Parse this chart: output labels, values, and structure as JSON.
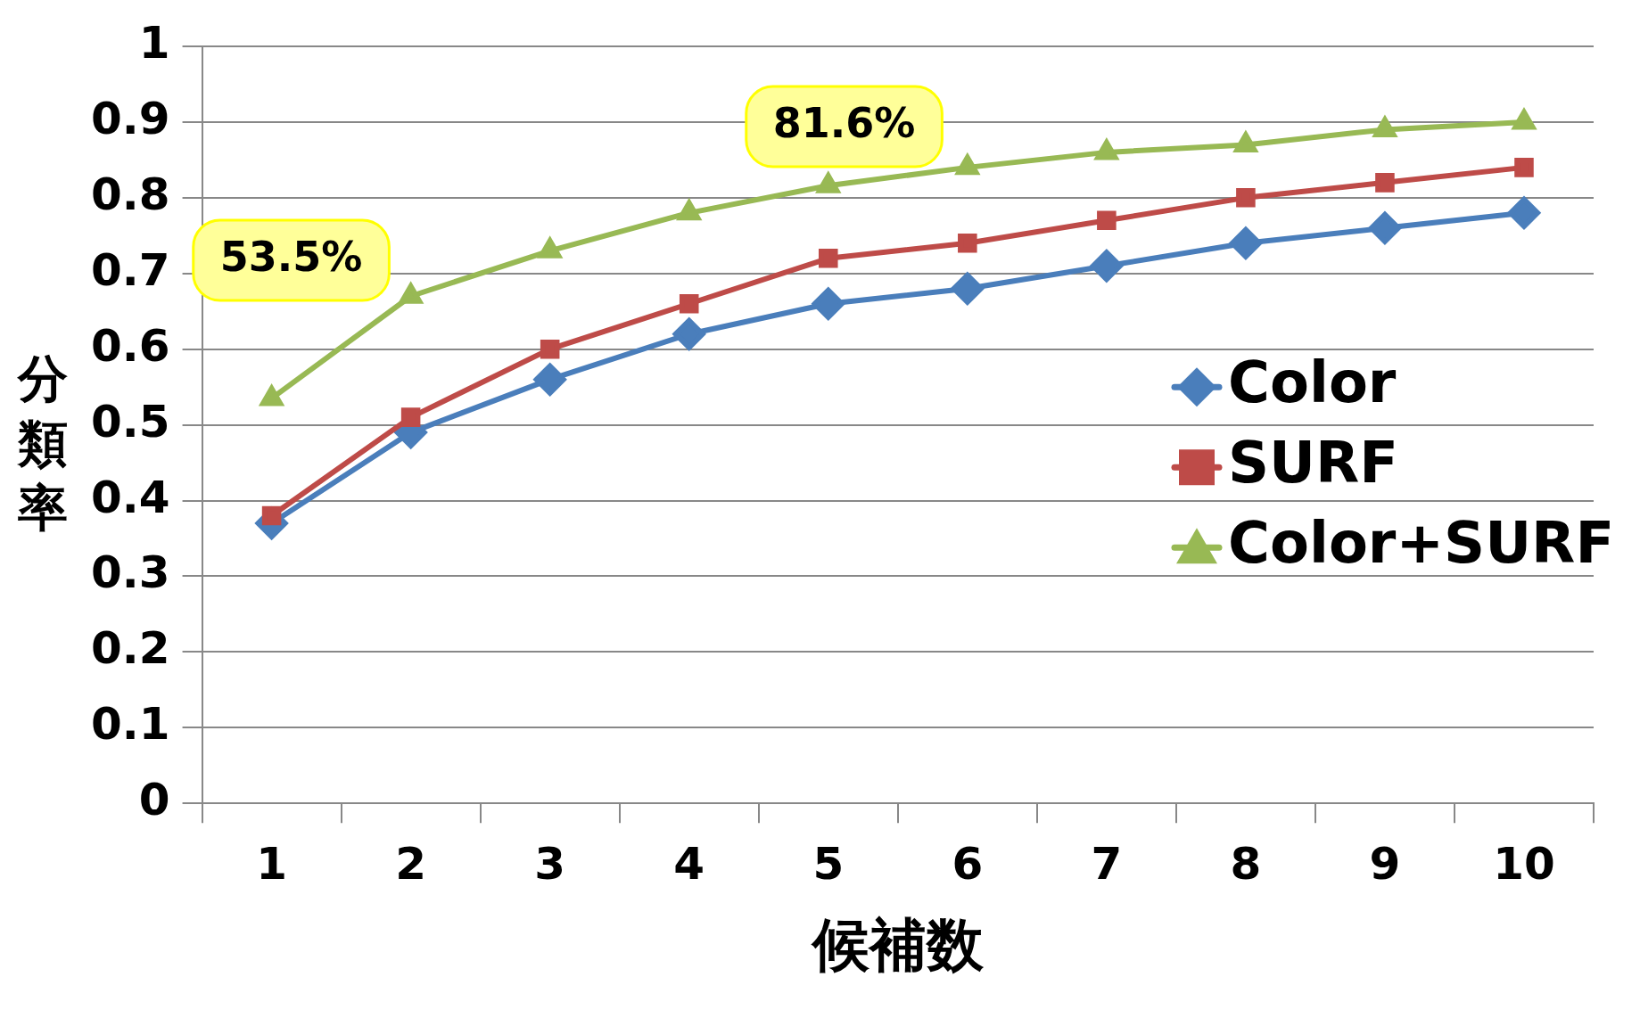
{
  "chart_data": {
    "type": "line",
    "xlabel": "候補数",
    "ylabel": "分類率",
    "categories": [
      "1",
      "2",
      "3",
      "4",
      "5",
      "6",
      "7",
      "8",
      "9",
      "10"
    ],
    "series": [
      {
        "name": "Color",
        "color": "#4a7ebb",
        "marker": "diamond",
        "values": [
          0.37,
          0.49,
          0.56,
          0.62,
          0.66,
          0.68,
          0.71,
          0.74,
          0.76,
          0.78
        ]
      },
      {
        "name": "SURF",
        "color": "#be4b48",
        "marker": "square",
        "values": [
          0.38,
          0.51,
          0.6,
          0.66,
          0.72,
          0.74,
          0.77,
          0.8,
          0.82,
          0.84
        ]
      },
      {
        "name": "Color+SURF",
        "color": "#98b954",
        "marker": "triangle",
        "values": [
          0.535,
          0.67,
          0.73,
          0.78,
          0.816,
          0.84,
          0.86,
          0.87,
          0.89,
          0.9
        ]
      }
    ],
    "ylim": [
      0,
      1
    ],
    "yticks": [
      0,
      0.1,
      0.2,
      0.3,
      0.4,
      0.5,
      0.6,
      0.7,
      0.8,
      0.9,
      1
    ],
    "grid": "y",
    "legend": "right",
    "annotations": [
      "53.5%",
      "81.6%"
    ]
  }
}
